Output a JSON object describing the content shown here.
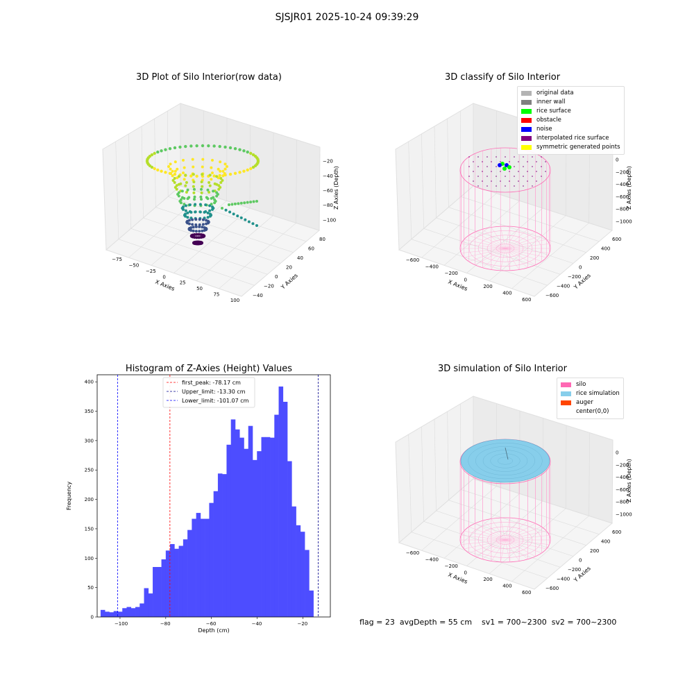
{
  "suptitle": "SJSJR01 2025-10-24 09:39:29",
  "status_line": "flag = 23  avgDepth = 55 cm    sv1 = 700~2300  sv2 = 700~2300",
  "chart_data": [
    {
      "type": "scatter3d",
      "title": "3D Plot of Silo Interior(row data)",
      "xlabel": "X Axies",
      "ylabel": "Y Axies",
      "zlabel": "Z Axies (Depth)",
      "xticks": [
        "−75",
        "−50",
        "−25",
        "0",
        "25",
        "50",
        "75",
        "100"
      ],
      "yticks": [
        "−40",
        "−20",
        "0",
        "20",
        "40",
        "60",
        "80"
      ],
      "zticks": [
        "−20",
        "−40",
        "−60",
        "−80",
        "−100"
      ],
      "colormap": "viridis"
    },
    {
      "type": "scatter3d",
      "title": "3D classify of Silo Interior",
      "xlabel": "X Axies",
      "ylabel": "Y Axies",
      "zlabel": "Z Axies (Depth)",
      "xticks": [
        "−600",
        "−400",
        "−200",
        "0",
        "200",
        "400",
        "600"
      ],
      "yticks": [
        "−600",
        "−400",
        "−200",
        "0",
        "200",
        "400",
        "600"
      ],
      "zticks": [
        "0",
        "−200",
        "−400",
        "−600",
        "−800",
        "−1000"
      ],
      "legend": [
        {
          "label": "original data",
          "color": "#b3b3b3"
        },
        {
          "label": "inner wall",
          "color": "#808080"
        },
        {
          "label": "rice surface",
          "color": "#00ff00"
        },
        {
          "label": "obstacle",
          "color": "#ff0000"
        },
        {
          "label": "noise",
          "color": "#0000ff"
        },
        {
          "label": "interpolated rice surface",
          "color": "#800080"
        },
        {
          "label": "symmetric generated points",
          "color": "#ffff00"
        }
      ]
    },
    {
      "type": "bar",
      "title": "Histogram of Z-Axies (Height) Values",
      "xlabel": "Depth (cm)",
      "ylabel": "Frequency",
      "xlim": [
        -110,
        -8
      ],
      "ylim": [
        0,
        412
      ],
      "xticks": [
        -100,
        -80,
        -60,
        -40,
        -20
      ],
      "yticks": [
        0,
        50,
        100,
        150,
        200,
        250,
        300,
        350,
        400
      ],
      "bar_color": "#4d4dff",
      "bin_start": -108.5,
      "bin_width": 1.9,
      "values": [
        12,
        9,
        8,
        10,
        9,
        15,
        17,
        15,
        17,
        23,
        49,
        40,
        85,
        85,
        98,
        113,
        124,
        116,
        121,
        132,
        148,
        167,
        177,
        167,
        167,
        194,
        214,
        244,
        243,
        293,
        336,
        319,
        305,
        286,
        325,
        267,
        282,
        306,
        306,
        305,
        344,
        392,
        366,
        265,
        188,
        156,
        145,
        114,
        45
      ],
      "vlines": [
        {
          "label": "first_peak: -78.17 cm",
          "x": -78.17,
          "color": "#ff0000"
        },
        {
          "label": "Upper_limit: -13.30 cm",
          "x": -13.3,
          "color": "#00008b"
        },
        {
          "label": "Lower_limit: -101.07 cm",
          "x": -101.07,
          "color": "#0000ff"
        }
      ]
    },
    {
      "type": "surface3d",
      "title": "3D simulation of Silo Interior",
      "xlabel": "X Axies",
      "ylabel": "Y Axies",
      "zlabel": "Z Axies (Depth)",
      "xticks": [
        "−600",
        "−400",
        "−200",
        "0",
        "200",
        "400",
        "600"
      ],
      "yticks": [
        "−600",
        "−400",
        "−200",
        "0",
        "200",
        "400",
        "600"
      ],
      "zticks": [
        "0",
        "−200",
        "−400",
        "−600",
        "−800",
        "−1000"
      ],
      "legend": [
        {
          "label": "silo",
          "color": "#ff69b4"
        },
        {
          "label": "rice simulation",
          "color": "#87ceeb"
        },
        {
          "label": "auger",
          "color": "#ff4500"
        },
        {
          "label": "center(0,0)",
          "color": "#ffffff"
        }
      ]
    }
  ]
}
